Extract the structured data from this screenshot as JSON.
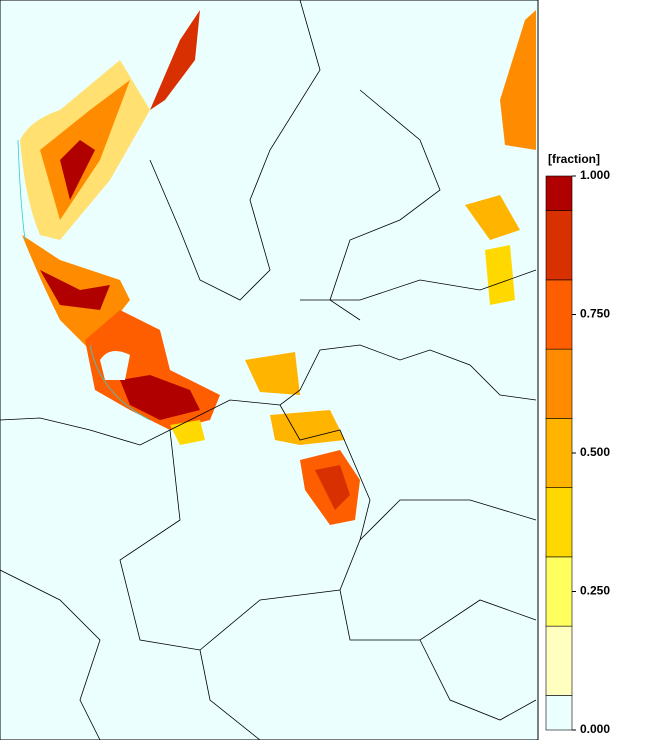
{
  "colorbar": {
    "title": "[fraction]",
    "levels": [
      0,
      0.0625,
      0.1875,
      0.3125,
      0.4375,
      0.5625,
      0.6875,
      0.8125,
      0.9375,
      1
    ],
    "colors": [
      "#ebffff",
      "#ffffc0",
      "#ffff60",
      "#ffd800",
      "#ffb400",
      "#ff8c00",
      "#ff5e00",
      "#d83000",
      "#b00000"
    ],
    "lim": [
      0,
      1
    ],
    "ticks": [
      {
        "value": 0,
        "label": "0.000"
      },
      {
        "value": 0.25,
        "label": "0.250"
      },
      {
        "value": 0.5,
        "label": "0.500"
      },
      {
        "value": 0.75,
        "label": "0.750"
      },
      {
        "value": 1,
        "label": "1.000"
      }
    ]
  }
}
